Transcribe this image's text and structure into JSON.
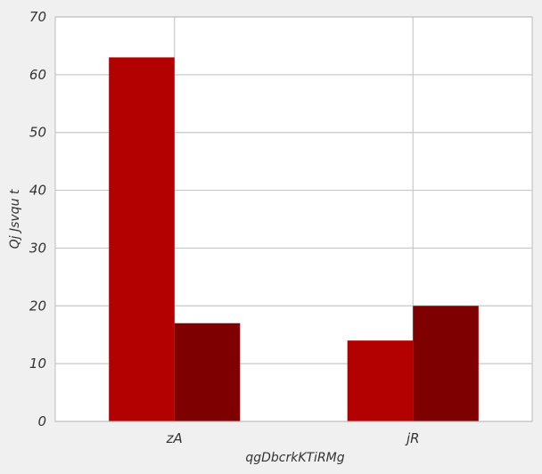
{
  "chart_data": {
    "type": "bar",
    "categories": [
      "zA",
      "jR"
    ],
    "series": [
      {
        "values": [
          63,
          14
        ]
      },
      {
        "values": [
          17,
          20
        ]
      }
    ],
    "xlabel": "qgDbcrkKTiRMg",
    "ylabel": "Qj Jsvqu t",
    "ylim": [
      0,
      70
    ],
    "yticks": [
      0,
      10,
      20,
      30,
      40,
      50,
      60,
      70
    ],
    "grid": true,
    "legend": "none",
    "colors": {
      "series": [
        "#b30000",
        "#7f0000"
      ],
      "figure_bg": "#f0f0f0",
      "plot_bg": "#ffffff",
      "grid": "#c8c8c8",
      "axes_edge": "#bcbcbc"
    }
  }
}
